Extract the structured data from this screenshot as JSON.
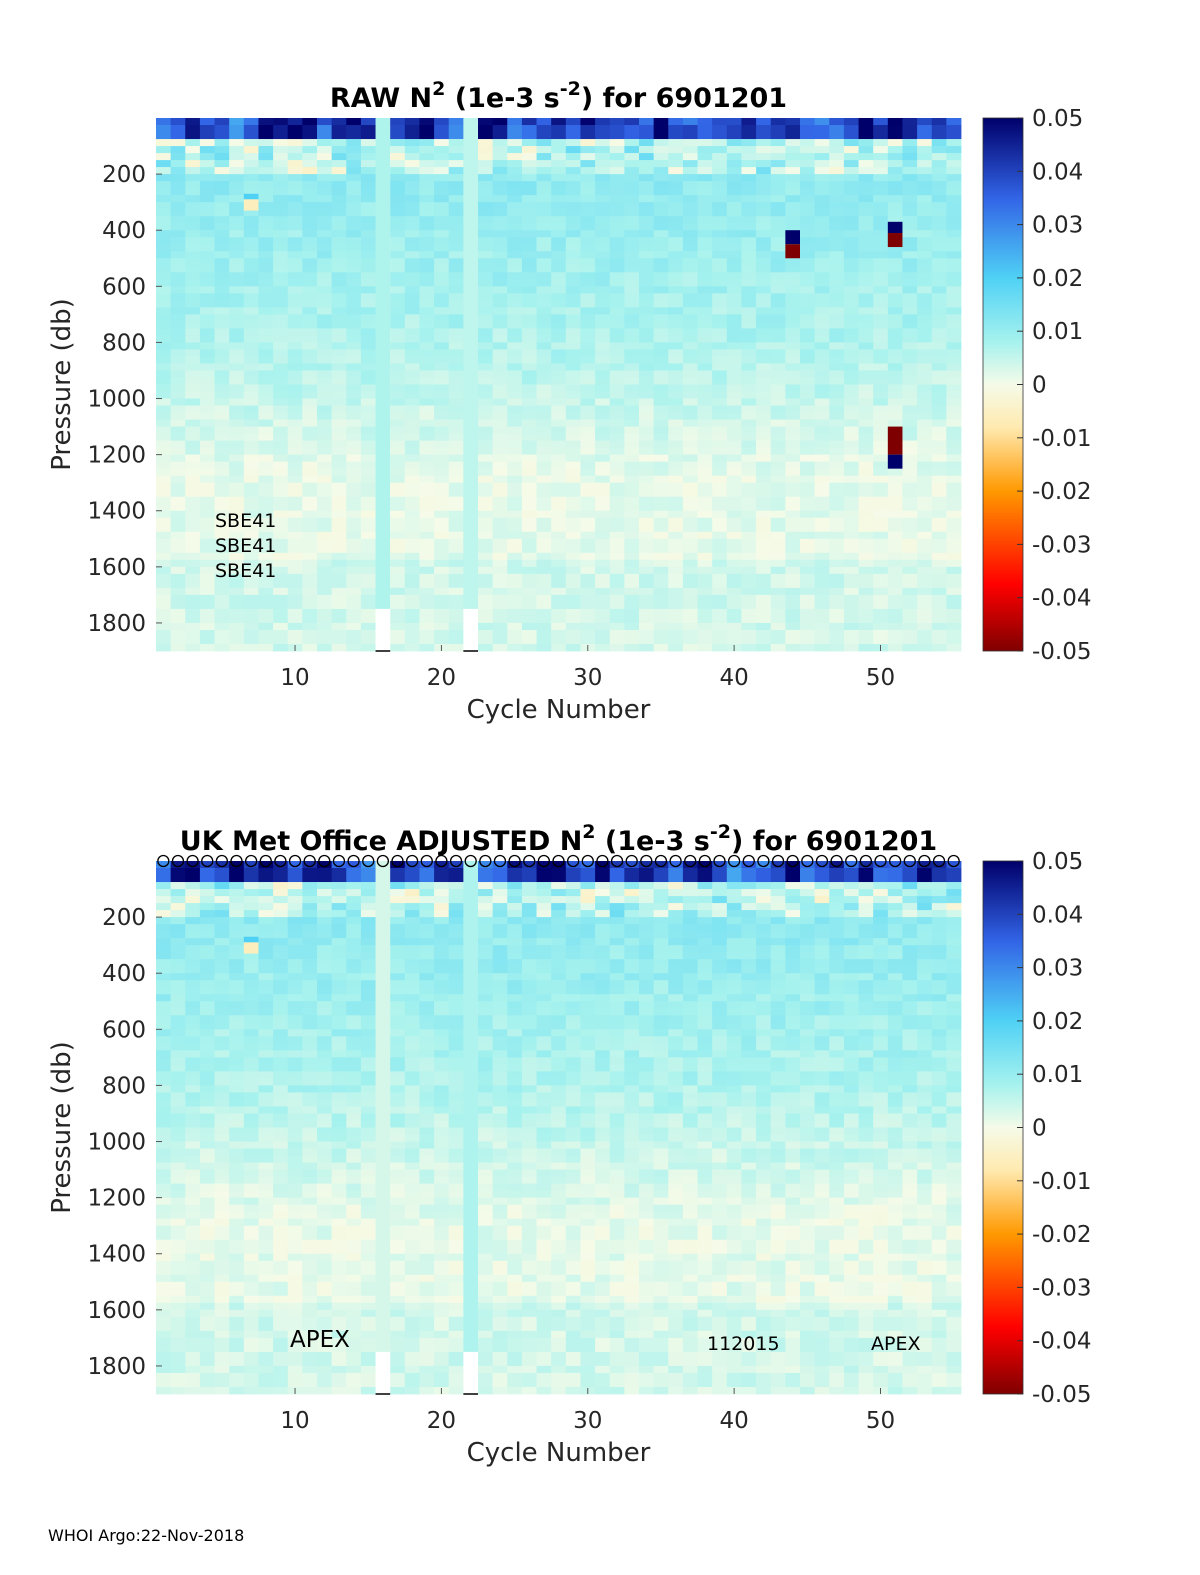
{
  "chart_data": [
    {
      "type": "heatmap",
      "title_main": "RAW N",
      "title_sup": "2",
      "title_rest": " (1e-3 s",
      "title_sup2": "-2",
      "title_end": ") for 6901201",
      "xlabel": "Cycle Number",
      "ylabel": "Pressure (db)",
      "xlim": [
        1,
        55
      ],
      "ylim": [
        1900,
        0
      ],
      "xticks": [
        "10",
        "20",
        "30",
        "40",
        "50"
      ],
      "yticks": [
        "200",
        "400",
        "600",
        "800",
        "1000",
        "1200",
        "1400",
        "1600",
        "1800"
      ],
      "colorbar_ticks": [
        "0.05",
        "0.04",
        "0.03",
        "0.02",
        "0.01",
        "0",
        "-0.01",
        "-0.02",
        "-0.03",
        "-0.04",
        "-0.05"
      ],
      "color_range": [
        -0.05,
        0.05
      ],
      "annotations": [
        "SBE41",
        "SBE41",
        "SBE41"
      ],
      "missing_cycles": [
        16,
        22
      ],
      "anomalies": [
        {
          "cycle": 44,
          "p_from": 400,
          "p_to": 450,
          "value": 0.05
        },
        {
          "cycle": 44,
          "p_from": 450,
          "p_to": 500,
          "value": -0.05
        },
        {
          "cycle": 51,
          "p_from": 370,
          "p_to": 410,
          "value": 0.05
        },
        {
          "cycle": 51,
          "p_from": 410,
          "p_to": 460,
          "value": -0.05
        },
        {
          "cycle": 51,
          "p_from": 1100,
          "p_to": 1200,
          "value": -0.05
        },
        {
          "cycle": 51,
          "p_from": 1200,
          "p_to": 1250,
          "value": 0.05
        },
        {
          "cycle": 7,
          "p_from": 270,
          "p_to": 290,
          "value": 0.02
        },
        {
          "cycle": 7,
          "p_from": 290,
          "p_to": 330,
          "value": -0.006
        }
      ]
    },
    {
      "type": "heatmap",
      "title_main": "UK Met Office  ADJUSTED N",
      "title_sup": "2",
      "title_rest": " (1e-3 s",
      "title_sup2": "-2",
      "title_end": ") for 6901201",
      "xlabel": "Cycle Number",
      "ylabel": "Pressure (db)",
      "xlim": [
        1,
        55
      ],
      "ylim": [
        1900,
        0
      ],
      "xticks": [
        "10",
        "20",
        "30",
        "40",
        "50"
      ],
      "yticks": [
        "200",
        "400",
        "600",
        "800",
        "1000",
        "1200",
        "1400",
        "1600",
        "1800"
      ],
      "colorbar_ticks": [
        "0.05",
        "0.04",
        "0.03",
        "0.02",
        "0.01",
        "0",
        "-0.01",
        "-0.02",
        "-0.03",
        "-0.04",
        "-0.05"
      ],
      "color_range": [
        -0.05,
        0.05
      ],
      "annotations": [
        "APEX",
        "112015",
        "APEX"
      ],
      "missing_cycles": [
        16,
        22
      ],
      "markers": "o",
      "anomalies": [
        {
          "cycle": 7,
          "p_from": 270,
          "p_to": 290,
          "value": 0.02
        },
        {
          "cycle": 7,
          "p_from": 290,
          "p_to": 330,
          "value": -0.006
        }
      ]
    }
  ],
  "footer": "WHOI Argo:22-Nov-2018"
}
